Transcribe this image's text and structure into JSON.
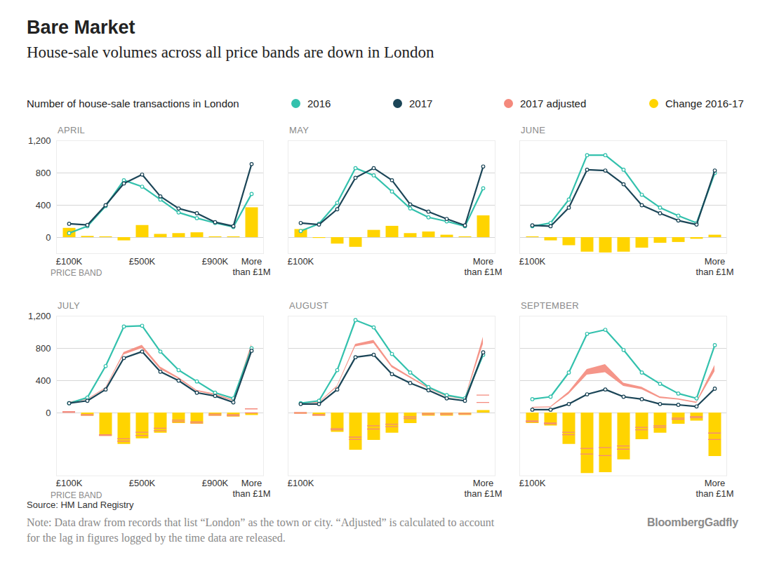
{
  "title": "Bare Market",
  "subtitle": "House-sale volumes across all price bands are down in London",
  "y_label": "Number of house-sale transactions in London",
  "source": "Source: HM Land Registry",
  "note": "Note: Data draw from records that list “London” as the town or city. “Adjusted” is calculated to account for the lag in figures logged by the time data are released.",
  "brand": "BloombergGadfly",
  "chart_data": [
    {
      "type": "line",
      "title": "APRIL",
      "x_label": "PRICE BAND",
      "categories": [
        "£100K",
        null,
        null,
        null,
        "£500K",
        null,
        null,
        null,
        "£900K",
        null,
        "More than £1M"
      ],
      "ylim": [
        -200,
        1200
      ],
      "yticks": [
        0,
        400,
        800,
        {
          "value": 1200,
          "label": "1,200"
        }
      ],
      "grid": true,
      "tick_labels": true,
      "series": [
        {
          "name": "2016",
          "type": "line",
          "color": "#33c1ad",
          "marker": "circle",
          "values": [
            55,
            140,
            390,
            710,
            630,
            470,
            310,
            240,
            180,
            130,
            540
          ]
        },
        {
          "name": "2017",
          "type": "line",
          "color": "#1b4557",
          "marker": "circle",
          "values": [
            170,
            155,
            400,
            670,
            780,
            510,
            360,
            300,
            190,
            140,
            910
          ]
        },
        {
          "name": "Change 2016-17",
          "type": "bar",
          "color": "#ffd400",
          "values": [
            115,
            15,
            10,
            -40,
            150,
            40,
            50,
            60,
            10,
            10,
            370
          ]
        }
      ]
    },
    {
      "type": "line",
      "title": "MAY",
      "categories": [
        "£100K",
        null,
        null,
        null,
        null,
        null,
        null,
        null,
        null,
        null,
        "More than £1M"
      ],
      "ylim": [
        -200,
        1200
      ],
      "yticks": [
        0,
        400,
        800,
        {
          "value": 1200,
          "label": "1,200"
        }
      ],
      "grid": true,
      "tick_labels": "x",
      "series": [
        {
          "name": "2016",
          "type": "line",
          "color": "#33c1ad",
          "marker": "circle",
          "values": [
            80,
            170,
            430,
            860,
            770,
            570,
            360,
            250,
            200,
            140,
            610
          ]
        },
        {
          "name": "2017",
          "type": "line",
          "color": "#1b4557",
          "marker": "circle",
          "values": [
            180,
            160,
            350,
            740,
            860,
            710,
            410,
            320,
            230,
            150,
            880
          ]
        },
        {
          "name": "Change 2016-17",
          "type": "bar",
          "color": "#ffd400",
          "values": [
            100,
            -10,
            -80,
            -120,
            90,
            140,
            50,
            70,
            30,
            10,
            270
          ]
        }
      ]
    },
    {
      "type": "line",
      "title": "JUNE",
      "categories": [
        "£100K",
        null,
        null,
        null,
        null,
        null,
        null,
        null,
        null,
        null,
        "More than £1M"
      ],
      "ylim": [
        -200,
        1200
      ],
      "yticks": [
        0,
        400,
        800,
        {
          "value": 1200,
          "label": "1,200"
        }
      ],
      "grid": true,
      "tick_labels": "x",
      "series": [
        {
          "name": "2016",
          "type": "line",
          "color": "#33c1ad",
          "marker": "circle",
          "values": [
            140,
            180,
            470,
            1020,
            1020,
            840,
            530,
            370,
            270,
            180,
            800
          ]
        },
        {
          "name": "2017",
          "type": "line",
          "color": "#1b4557",
          "marker": "circle",
          "values": [
            150,
            140,
            370,
            840,
            830,
            660,
            400,
            300,
            210,
            160,
            830
          ]
        },
        {
          "name": "Change 2016-17",
          "type": "bar",
          "color": "#ffd400",
          "values": [
            10,
            -40,
            -100,
            -180,
            -190,
            -180,
            -130,
            -70,
            -60,
            -20,
            30
          ]
        }
      ]
    },
    {
      "type": "line",
      "title": "JULY",
      "x_label": "PRICE BAND",
      "categories": [
        "£100K",
        null,
        null,
        null,
        "£500K",
        null,
        null,
        null,
        "£900K",
        null,
        "More than £1M"
      ],
      "ylim": [
        -780,
        1200
      ],
      "yticks": [
        0,
        400,
        800,
        {
          "value": 1200,
          "label": "1,200"
        }
      ],
      "grid": true,
      "tick_labels": true,
      "series": [
        {
          "name": "2016",
          "type": "line",
          "color": "#33c1ad",
          "marker": "circle",
          "values": [
            120,
            190,
            580,
            1070,
            1080,
            760,
            530,
            390,
            250,
            180,
            800
          ]
        },
        {
          "name": "2017",
          "type": "line",
          "color": "#1b4557",
          "marker": "circle",
          "values": [
            120,
            150,
            290,
            680,
            760,
            510,
            400,
            250,
            210,
            130,
            770
          ]
        },
        {
          "name": "2017 adjusted",
          "type": "area",
          "color": "#f4897c",
          "lower": [
            125,
            160,
            300,
            720,
            800,
            540,
            420,
            265,
            220,
            145,
            800
          ],
          "upper": [
            135,
            170,
            310,
            750,
            840,
            570,
            440,
            280,
            235,
            160,
            850
          ]
        },
        {
          "name": "Change 2016-17",
          "type": "bar",
          "color": "#ffd400",
          "values": [
            0,
            -40,
            -290,
            -390,
            -320,
            -250,
            -130,
            -140,
            -40,
            -50,
            -30
          ],
          "adjusted_lower": [
            5,
            -30,
            -280,
            -350,
            -280,
            -220,
            -110,
            -125,
            -30,
            -35,
            0
          ],
          "adjusted_upper": [
            15,
            -20,
            -270,
            -320,
            -240,
            -190,
            -90,
            -110,
            -15,
            -20,
            50
          ]
        }
      ]
    },
    {
      "type": "line",
      "title": "AUGUST",
      "categories": [
        "£100K",
        null,
        null,
        null,
        null,
        null,
        null,
        null,
        null,
        null,
        "More than £1M"
      ],
      "ylim": [
        -780,
        1200
      ],
      "yticks": [
        0,
        400,
        800,
        {
          "value": 1200,
          "label": "1,200"
        }
      ],
      "grid": true,
      "tick_labels": "x",
      "series": [
        {
          "name": "2016",
          "type": "line",
          "color": "#33c1ad",
          "marker": "circle",
          "values": [
            120,
            150,
            530,
            1150,
            1060,
            730,
            500,
            320,
            220,
            180,
            720
          ]
        },
        {
          "name": "2017",
          "type": "line",
          "color": "#1b4557",
          "marker": "circle",
          "values": [
            110,
            110,
            290,
            690,
            720,
            480,
            370,
            280,
            180,
            150,
            750
          ]
        },
        {
          "name": "2017 adjusted",
          "type": "area",
          "color": "#f4897c",
          "lower": [
            115,
            120,
            320,
            820,
            860,
            560,
            430,
            300,
            200,
            165,
            850
          ],
          "upper": [
            125,
            130,
            335,
            850,
            900,
            590,
            450,
            315,
            215,
            175,
            940
          ]
        },
        {
          "name": "Change 2016-17",
          "type": "bar",
          "color": "#ffd400",
          "values": [
            -10,
            -40,
            -240,
            -460,
            -340,
            -250,
            -130,
            -40,
            -40,
            -30,
            30
          ],
          "adjusted_lower": [
            -5,
            -30,
            -210,
            -330,
            -200,
            -170,
            -70,
            -20,
            -20,
            -15,
            130
          ],
          "adjusted_upper": [
            5,
            -20,
            -195,
            -300,
            -160,
            -140,
            -50,
            -5,
            -5,
            -5,
            220
          ]
        }
      ]
    },
    {
      "type": "line",
      "title": "SEPTEMBER",
      "categories": [
        "£100K",
        null,
        null,
        null,
        null,
        null,
        null,
        null,
        null,
        null,
        "More than £1M"
      ],
      "ylim": [
        -780,
        1200
      ],
      "yticks": [
        0,
        400,
        800,
        {
          "value": 1200,
          "label": "1,200"
        }
      ],
      "grid": true,
      "tick_labels": "x",
      "series": [
        {
          "name": "2016",
          "type": "line",
          "color": "#33c1ad",
          "marker": "circle",
          "values": [
            170,
            200,
            500,
            980,
            1030,
            780,
            500,
            360,
            240,
            180,
            840
          ]
        },
        {
          "name": "2017",
          "type": "line",
          "color": "#1b4557",
          "marker": "circle",
          "values": [
            40,
            40,
            110,
            230,
            290,
            200,
            170,
            110,
            100,
            80,
            300
          ]
        },
        {
          "name": "2017 adjusted",
          "type": "area",
          "color": "#f4897c",
          "lower": [
            60,
            65,
            230,
            470,
            500,
            330,
            290,
            180,
            160,
            120,
            510
          ],
          "upper": [
            70,
            75,
            260,
            540,
            600,
            370,
            320,
            200,
            175,
            135,
            590
          ]
        },
        {
          "name": "Change 2016-17",
          "type": "bar",
          "color": "#ffd400",
          "values": [
            -130,
            -160,
            -390,
            -750,
            -740,
            -580,
            -330,
            -250,
            -140,
            -100,
            -540
          ],
          "adjusted_lower": [
            -110,
            -135,
            -270,
            -510,
            -530,
            -450,
            -210,
            -180,
            -80,
            -60,
            -330
          ],
          "adjusted_upper": [
            -100,
            -125,
            -240,
            -440,
            -430,
            -410,
            -180,
            -160,
            -65,
            -45,
            -250
          ]
        }
      ]
    }
  ]
}
